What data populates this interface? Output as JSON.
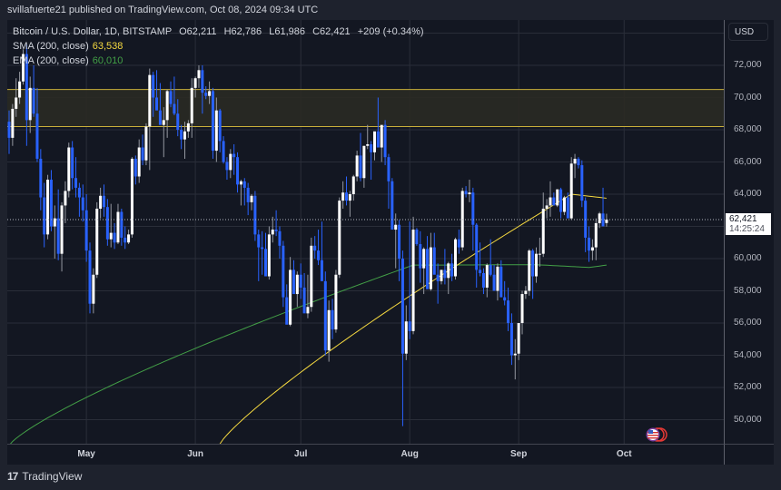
{
  "header": {
    "publisher_text": "svillafuerte21 published on TradingView.com, Oct 08, 2024 09:34 UTC"
  },
  "legend": {
    "symbol": "Bitcoin / U.S. Dollar, 1D, BITSTAMP",
    "open_label": "O",
    "open": "62,211",
    "high_label": "H",
    "high": "62,786",
    "low_label": "L",
    "low": "61,986",
    "close_label": "C",
    "close": "62,421",
    "change": "+209 (+0.34%)",
    "sma_label": "SMA (200, close)",
    "sma_value": "63,538",
    "ema_label": "EMA (200, close)",
    "ema_value": "60,010"
  },
  "price_axis": {
    "currency_button": "USD",
    "current_price": "62,421",
    "countdown": "14:25:24"
  },
  "footer": {
    "brand": "TradingView"
  },
  "colors": {
    "up": "#ffffff",
    "down": "#2962ff",
    "sma": "#f5d940",
    "ema": "#43a047",
    "zone_fill": "#2a2a24",
    "zone_border": "#c9b03a",
    "grid": "#2a2e39",
    "background": "#131722"
  },
  "chart_data": {
    "type": "candlestick",
    "title": "Bitcoin / U.S. Dollar, 1D, BITSTAMP",
    "xlabel": "",
    "ylabel": "USD",
    "ylim": [
      48500,
      74800
    ],
    "y_ticks": [
      50000,
      52000,
      54000,
      56000,
      58000,
      60000,
      62000,
      64000,
      66000,
      68000,
      70000,
      72000
    ],
    "y_tick_labels": [
      "50,000",
      "52,000",
      "54,000",
      "56,000",
      "58,000",
      "60,000",
      "62,000",
      "64,000",
      "66,000",
      "68,000",
      "70,000",
      "72,000"
    ],
    "x_tick_labels": [
      "May",
      "Jun",
      "Jul",
      "Aug",
      "Sep",
      "Oct"
    ],
    "x_tick_day_index": [
      22,
      53,
      83,
      114,
      145,
      175
    ],
    "grid": true,
    "current_price": 62421,
    "resistance_zone": [
      68200,
      70500
    ],
    "series": [
      {
        "name": "SMA (200, close)",
        "last": 63538
      },
      {
        "name": "EMA (200, close)",
        "last": 60010
      }
    ],
    "ohlc": [
      [
        68500,
        69200,
        66500,
        67500
      ],
      [
        67500,
        69600,
        67000,
        69300
      ],
      [
        69300,
        71200,
        68800,
        70000
      ],
      [
        70000,
        71600,
        69600,
        71000
      ],
      [
        71000,
        73000,
        70800,
        72700
      ],
      [
        72700,
        73300,
        67000,
        68600
      ],
      [
        68600,
        71300,
        67800,
        70600
      ],
      [
        70600,
        72000,
        68800,
        69000
      ],
      [
        69000,
        70600,
        66000,
        66200
      ],
      [
        66200,
        66800,
        63000,
        63800
      ],
      [
        63800,
        64700,
        60700,
        61500
      ],
      [
        61500,
        65200,
        61200,
        64900
      ],
      [
        64900,
        65500,
        61700,
        62000
      ],
      [
        62000,
        63300,
        60000,
        62500
      ],
      [
        62500,
        64300,
        59900,
        60300
      ],
      [
        60300,
        63500,
        59200,
        63300
      ],
      [
        63300,
        64800,
        62200,
        64200
      ],
      [
        64200,
        67200,
        63800,
        66900
      ],
      [
        66900,
        67300,
        64300,
        65000
      ],
      [
        65000,
        66300,
        63800,
        64400
      ],
      [
        64400,
        64700,
        62600,
        63800
      ],
      [
        63800,
        64600,
        62300,
        63000
      ],
      [
        63000,
        64000,
        59800,
        60500
      ],
      [
        60500,
        61000,
        56600,
        57200
      ],
      [
        57200,
        59400,
        56600,
        59000
      ],
      [
        59000,
        63500,
        58800,
        63100
      ],
      [
        63100,
        64400,
        62500,
        63900
      ],
      [
        63900,
        64600,
        62600,
        63200
      ],
      [
        63200,
        63700,
        60800,
        61200
      ],
      [
        61200,
        63400,
        60700,
        61600
      ],
      [
        61600,
        62200,
        60600,
        61000
      ],
      [
        61000,
        63400,
        60900,
        62900
      ],
      [
        62900,
        63100,
        60800,
        61300
      ],
      [
        61300,
        62000,
        60600,
        61000
      ],
      [
        61000,
        61800,
        60900,
        61500
      ],
      [
        61500,
        66300,
        61300,
        66200
      ],
      [
        66200,
        66400,
        64600,
        65100
      ],
      [
        65100,
        67400,
        64700,
        66900
      ],
      [
        66900,
        67700,
        65800,
        66100
      ],
      [
        66100,
        68400,
        65800,
        68200
      ],
      [
        68200,
        71800,
        65500,
        71400
      ],
      [
        71400,
        71600,
        68800,
        70000
      ],
      [
        70000,
        71700,
        69500,
        69200
      ],
      [
        69200,
        70900,
        68400,
        68300
      ],
      [
        68300,
        69400,
        66300,
        68600
      ],
      [
        68600,
        70500,
        67500,
        70400
      ],
      [
        70400,
        71000,
        69400,
        69600
      ],
      [
        69600,
        71300,
        68900,
        69000
      ],
      [
        69000,
        69900,
        67600,
        68000
      ],
      [
        68000,
        68300,
        66800,
        67400
      ],
      [
        67400,
        68500,
        66200,
        67900
      ],
      [
        67900,
        68600,
        67500,
        68400
      ],
      [
        68400,
        71200,
        67500,
        70600
      ],
      [
        70600,
        71300,
        70000,
        71200
      ],
      [
        71200,
        72000,
        70600,
        71700
      ],
      [
        71700,
        72000,
        69000,
        70300
      ],
      [
        70300,
        70700,
        69900,
        70100
      ],
      [
        70100,
        71000,
        69600,
        70400
      ],
      [
        70400,
        70600,
        66200,
        66700
      ],
      [
        66700,
        70000,
        66000,
        69200
      ],
      [
        69200,
        69300,
        66600,
        67300
      ],
      [
        67300,
        67600,
        65900,
        66000
      ],
      [
        66000,
        66300,
        64900,
        65500
      ],
      [
        65500,
        66800,
        65000,
        66500
      ],
      [
        66500,
        67100,
        65200,
        66300
      ],
      [
        66300,
        66600,
        64100,
        64600
      ],
      [
        64600,
        64900,
        63300,
        64800
      ],
      [
        64800,
        65000,
        63300,
        64400
      ],
      [
        64400,
        64700,
        62700,
        63500
      ],
      [
        63500,
        64000,
        63000,
        63900
      ],
      [
        63900,
        64200,
        61100,
        61500
      ],
      [
        61500,
        61800,
        58600,
        60700
      ],
      [
        60700,
        61700,
        59000,
        60600
      ],
      [
        60600,
        61600,
        59300,
        58900
      ],
      [
        58900,
        62000,
        58700,
        61500
      ],
      [
        61500,
        62600,
        61000,
        61800
      ],
      [
        61800,
        63000,
        61400,
        61700
      ],
      [
        61700,
        62000,
        60000,
        60800
      ],
      [
        60800,
        61100,
        57000,
        57600
      ],
      [
        57600,
        58400,
        56500,
        55900
      ],
      [
        55900,
        60100,
        55800,
        59300
      ],
      [
        59300,
        59900,
        57900,
        57800
      ],
      [
        57800,
        59200,
        57000,
        59000
      ],
      [
        59000,
        59700,
        57500,
        58200
      ],
      [
        58200,
        59100,
        57000,
        56600
      ],
      [
        56600,
        59000,
        56300,
        57000
      ],
      [
        57000,
        61300,
        56700,
        60800
      ],
      [
        60800,
        61400,
        60000,
        60500
      ],
      [
        60500,
        61800,
        59600,
        59900
      ],
      [
        59900,
        62300,
        59600,
        58600
      ],
      [
        58600,
        59200,
        54000,
        54300
      ],
      [
        54300,
        57400,
        53600,
        56800
      ],
      [
        56800,
        57500,
        55000,
        55600
      ],
      [
        55600,
        59300,
        55400,
        59000
      ],
      [
        59000,
        63800,
        58800,
        63600
      ],
      [
        63600,
        64800,
        63100,
        64100
      ],
      [
        64100,
        65100,
        63300,
        63600
      ],
      [
        63600,
        64200,
        62600,
        64000
      ],
      [
        64000,
        65200,
        63600,
        65100
      ],
      [
        65100,
        66700,
        64800,
        66400
      ],
      [
        66400,
        67800,
        64800,
        65000
      ],
      [
        65000,
        67000,
        64400,
        67000
      ],
      [
        67000,
        68300,
        66800,
        67100
      ],
      [
        67100,
        67300,
        64900,
        66600
      ],
      [
        66600,
        67700,
        66100,
        67900
      ],
      [
        67900,
        70000,
        66900,
        66900
      ],
      [
        66900,
        68100,
        66000,
        68300
      ],
      [
        68300,
        68600,
        65800,
        66300
      ],
      [
        66300,
        66500,
        63100,
        64800
      ],
      [
        64800,
        65000,
        62700,
        61800
      ],
      [
        61800,
        62800,
        59400,
        62100
      ],
      [
        62100,
        62400,
        58600,
        60000
      ],
      [
        60000,
        60500,
        49600,
        54100
      ],
      [
        54100,
        57100,
        53700,
        56100
      ],
      [
        56100,
        62300,
        55000,
        55500
      ],
      [
        55500,
        62600,
        55300,
        61800
      ],
      [
        61800,
        61900,
        60800,
        60900
      ],
      [
        60900,
        61700,
        58500,
        59400
      ],
      [
        59400,
        60700,
        57800,
        60600
      ],
      [
        60600,
        61400,
        58500,
        58100
      ],
      [
        58100,
        61600,
        58000,
        60700
      ],
      [
        60700,
        61600,
        59100,
        59000
      ],
      [
        59000,
        59700,
        57200,
        58600
      ],
      [
        58600,
        59300,
        58400,
        59300
      ],
      [
        59300,
        60600,
        58400,
        58800
      ],
      [
        58800,
        59800,
        57800,
        59700
      ],
      [
        59700,
        60300,
        58600,
        58900
      ],
      [
        58900,
        61300,
        58700,
        61200
      ],
      [
        61200,
        61800,
        60300,
        60700
      ],
      [
        60700,
        64400,
        60500,
        64200
      ],
      [
        64200,
        64500,
        63800,
        64000
      ],
      [
        64000,
        64900,
        63500,
        64100
      ],
      [
        64100,
        64400,
        60500,
        62100
      ],
      [
        62100,
        62200,
        58200,
        59300
      ],
      [
        59300,
        61000,
        58900,
        59100
      ],
      [
        59100,
        59400,
        57800,
        58200
      ],
      [
        58200,
        59700,
        57600,
        59600
      ],
      [
        59600,
        61200,
        58900,
        59000
      ],
      [
        59000,
        59600,
        58500,
        58000
      ],
      [
        58000,
        59700,
        57400,
        59500
      ],
      [
        59500,
        59900,
        58000,
        57600
      ],
      [
        57600,
        58600,
        57100,
        57400
      ],
      [
        57400,
        58200,
        55500,
        56000
      ],
      [
        56000,
        56600,
        53400,
        54000
      ],
      [
        54000,
        55000,
        52500,
        54100
      ],
      [
        54100,
        56000,
        53700,
        56000
      ],
      [
        56000,
        58000,
        55300,
        57800
      ],
      [
        57800,
        58300,
        57500,
        58000
      ],
      [
        58000,
        60600,
        57700,
        60500
      ],
      [
        60500,
        60600,
        57500,
        58900
      ],
      [
        58900,
        60700,
        58500,
        60300
      ],
      [
        60300,
        61300,
        59500,
        60300
      ],
      [
        60300,
        64100,
        60100,
        63100
      ],
      [
        63100,
        63700,
        62500,
        63300
      ],
      [
        63300,
        64800,
        62600,
        63800
      ],
      [
        63800,
        64100,
        63400,
        63300
      ],
      [
        63300,
        64300,
        63200,
        64300
      ],
      [
        64300,
        64400,
        62500,
        62900
      ],
      [
        62900,
        63900,
        62700,
        63800
      ],
      [
        63800,
        64100,
        62600,
        62500
      ],
      [
        62500,
        66300,
        62400,
        65900
      ],
      [
        65900,
        66500,
        65000,
        66200
      ],
      [
        66200,
        66300,
        65600,
        65800
      ],
      [
        65800,
        66100,
        63200,
        63600
      ],
      [
        63600,
        63800,
        60400,
        61300
      ],
      [
        61300,
        62000,
        59800,
        60500
      ],
      [
        60500,
        61200,
        59900,
        60700
      ],
      [
        60700,
        62500,
        59900,
        62200
      ],
      [
        62200,
        62900,
        61900,
        62800
      ],
      [
        62800,
        64400,
        62000,
        62000
      ],
      [
        62211,
        62786,
        61986,
        62421
      ]
    ]
  }
}
